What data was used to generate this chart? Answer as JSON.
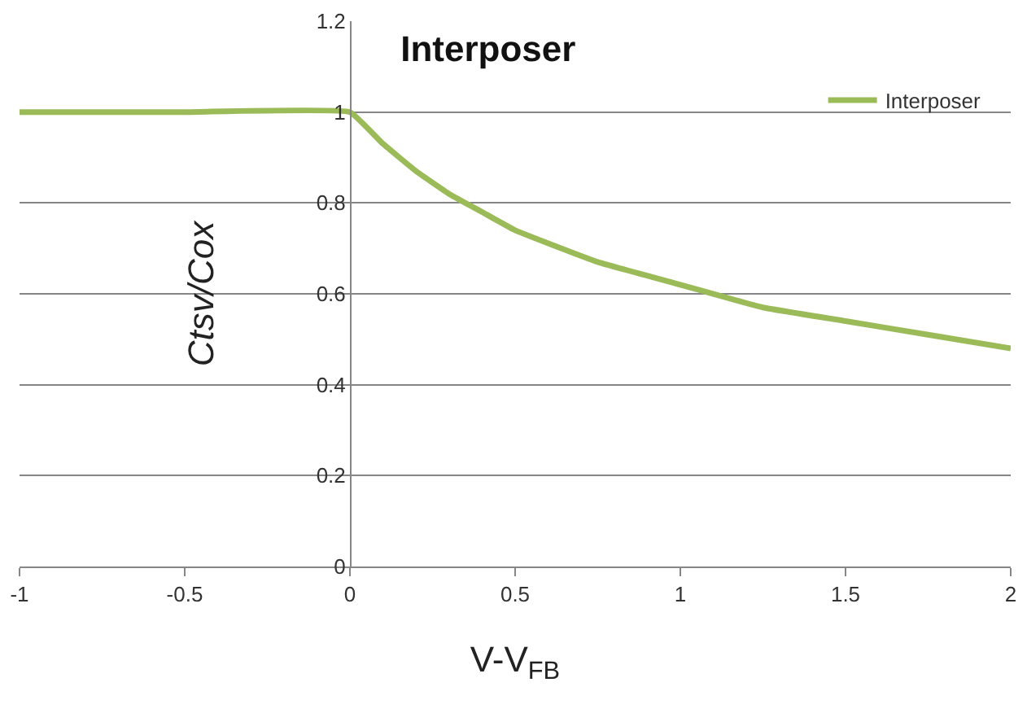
{
  "chart_data": {
    "type": "line",
    "title": "Interposer",
    "xlabel": "V-V$_{FB}$",
    "ylabel": "Ctsv/Cox",
    "x": [
      -1,
      -0.5,
      0,
      0.1,
      0.2,
      0.3,
      0.4,
      0.5,
      0.75,
      1,
      1.25,
      1.5,
      1.75,
      2
    ],
    "series": [
      {
        "name": "Interposer",
        "color": "#9bbb59",
        "values": [
          1,
          1,
          1,
          0.93,
          0.87,
          0.82,
          0.78,
          0.74,
          0.67,
          0.62,
          0.57,
          0.54,
          0.51,
          0.48
        ]
      }
    ],
    "xlim": [
      -1,
      2
    ],
    "xticks": [
      -1,
      -0.5,
      0,
      0.5,
      1,
      1.5,
      2
    ],
    "ylim": [
      0,
      1.2
    ],
    "yticks": [
      0,
      0.2,
      0.4,
      0.6,
      0.8,
      1,
      1.2
    ],
    "grid": "y",
    "legend": "top right",
    "marker": "none",
    "line_style": "solid"
  }
}
